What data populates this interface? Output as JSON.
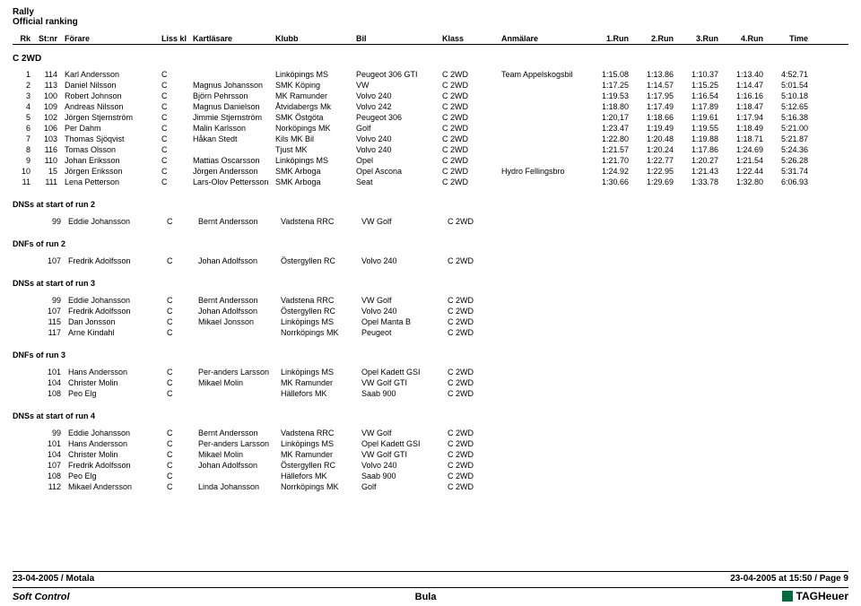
{
  "header": {
    "title": "Rally",
    "subtitle": "Official ranking",
    "columns": [
      "Rk",
      "St:nr",
      "Förare",
      "Liss kl",
      "Kartläsare",
      "Klubb",
      "Bil",
      "Klass",
      "Anmälare",
      "1.Run",
      "2.Run",
      "3.Run",
      "4.Run",
      "Time"
    ]
  },
  "class_label": "C 2WD",
  "results": [
    {
      "rk": "1",
      "st": "114",
      "driver": "Karl Andersson",
      "cls": "C",
      "co": "",
      "club": "Linköpings MS",
      "car": "Peugeot 306 GTI",
      "klass": "C 2WD",
      "entrant": "Team Appelskogsbil",
      "r1": "1:15.08",
      "r2": "1:13.86",
      "r3": "1:10.37",
      "r4": "1:13.40",
      "time": "4:52.71"
    },
    {
      "rk": "2",
      "st": "113",
      "driver": "Daniel Nilsson",
      "cls": "C",
      "co": "Magnus Johansson",
      "club": "SMK Köping",
      "car": "VW",
      "klass": "C 2WD",
      "entrant": "",
      "r1": "1:17.25",
      "r2": "1:14.57",
      "r3": "1:15.25",
      "r4": "1:14.47",
      "time": "5:01.54"
    },
    {
      "rk": "3",
      "st": "100",
      "driver": "Robert Johnson",
      "cls": "C",
      "co": "Björn Pehrsson",
      "club": "MK Ramunder",
      "car": "Volvo 240",
      "klass": "C 2WD",
      "entrant": "",
      "r1": "1:19.53",
      "r2": "1:17.95",
      "r3": "1:16.54",
      "r4": "1:16.16",
      "time": "5:10.18"
    },
    {
      "rk": "4",
      "st": "109",
      "driver": "Andreas Nilsson",
      "cls": "C",
      "co": "Magnus Danielson",
      "club": "Åtvidabergs Mk",
      "car": "Volvo 242",
      "klass": "C 2WD",
      "entrant": "",
      "r1": "1:18.80",
      "r2": "1:17.49",
      "r3": "1:17.89",
      "r4": "1:18.47",
      "time": "5:12.65"
    },
    {
      "rk": "5",
      "st": "102",
      "driver": "Jörgen Stjernström",
      "cls": "C",
      "co": "Jimmie Stjernström",
      "club": "SMK Östgöta",
      "car": "Peugeot 306",
      "klass": "C 2WD",
      "entrant": "",
      "r1": "1:20,17",
      "r2": "1:18.66",
      "r3": "1:19.61",
      "r4": "1:17.94",
      "time": "5:16.38"
    },
    {
      "rk": "6",
      "st": "106",
      "driver": "Per Dahm",
      "cls": "C",
      "co": "Malin Karlsson",
      "club": "Norköpings MK",
      "car": "Golf",
      "klass": "C 2WD",
      "entrant": "",
      "r1": "1:23.47",
      "r2": "1:19.49",
      "r3": "1:19.55",
      "r4": "1:18.49",
      "time": "5:21.00"
    },
    {
      "rk": "7",
      "st": "103",
      "driver": "Thomas Sjöqvist",
      "cls": "C",
      "co": "Håkan Stedt",
      "club": "Kils MK Bil",
      "car": "Volvo 240",
      "klass": "C 2WD",
      "entrant": "",
      "r1": "1:22.80",
      "r2": "1:20.48",
      "r3": "1:19.88",
      "r4": "1:18.71",
      "time": "5:21.87"
    },
    {
      "rk": "8",
      "st": "116",
      "driver": "Tomas Olsson",
      "cls": "C",
      "co": "",
      "club": "Tjust MK",
      "car": "Volvo 240",
      "klass": "C 2WD",
      "entrant": "",
      "r1": "1:21.57",
      "r2": "1:20.24",
      "r3": "1:17.86",
      "r4": "1:24.69",
      "time": "5:24.36"
    },
    {
      "rk": "9",
      "st": "110",
      "driver": "Johan Eriksson",
      "cls": "C",
      "co": "Mattias Oscarsson",
      "club": "Linköpings MS",
      "car": "Opel",
      "klass": "C 2WD",
      "entrant": "",
      "r1": "1:21.70",
      "r2": "1:22.77",
      "r3": "1:20.27",
      "r4": "1:21.54",
      "time": "5:26.28"
    },
    {
      "rk": "10",
      "st": "15",
      "driver": "Jörgen Eriksson",
      "cls": "C",
      "co": "Jörgen Andersson",
      "club": "SMK Arboga",
      "car": "Opel Ascona",
      "klass": "C 2WD",
      "entrant": "Hydro Fellingsbro",
      "r1": "1:24.92",
      "r2": "1:22.95",
      "r3": "1:21.43",
      "r4": "1:22.44",
      "time": "5:31.74"
    },
    {
      "rk": "11",
      "st": "111",
      "driver": "Lena Petterson",
      "cls": "C",
      "co": "Lars-Olov Pettersson",
      "club": "SMK Arboga",
      "car": "Seat",
      "klass": "C 2WD",
      "entrant": "",
      "r1": "1:30.66",
      "r2": "1:29.69",
      "r3": "1:33.78",
      "r4": "1:32.80",
      "time": "6:06.93"
    }
  ],
  "sections": [
    {
      "title": "DNSs at start of run 2",
      "rows": [
        {
          "st": "99",
          "driver": "Eddie Johansson",
          "cls": "C",
          "co": "Bernt Andersson",
          "club": "Vadstena RRC",
          "car": "VW Golf",
          "klass": "C 2WD"
        }
      ]
    },
    {
      "title": "DNFs of run 2",
      "rows": [
        {
          "st": "107",
          "driver": "Fredrik Adolfsson",
          "cls": "C",
          "co": "Johan Adolfsson",
          "club": "Östergyllen RC",
          "car": "Volvo 240",
          "klass": "C 2WD"
        }
      ]
    },
    {
      "title": "DNSs at start of run 3",
      "rows": [
        {
          "st": "99",
          "driver": "Eddie Johansson",
          "cls": "C",
          "co": "Bernt Andersson",
          "club": "Vadstena RRC",
          "car": "VW Golf",
          "klass": "C 2WD"
        },
        {
          "st": "107",
          "driver": "Fredrik Adolfsson",
          "cls": "C",
          "co": "Johan Adolfsson",
          "club": "Östergyllen RC",
          "car": "Volvo 240",
          "klass": "C 2WD"
        },
        {
          "st": "115",
          "driver": "Dan Jonsson",
          "cls": "C",
          "co": "Mikael Jonsson",
          "club": "Linköpings MS",
          "car": "Opel Manta B",
          "klass": "C 2WD"
        },
        {
          "st": "117",
          "driver": "Arne Kindahl",
          "cls": "C",
          "co": "",
          "club": "Norrköpings MK",
          "car": "Peugeot",
          "klass": "C 2WD"
        }
      ]
    },
    {
      "title": "DNFs of run 3",
      "rows": [
        {
          "st": "101",
          "driver": "Hans Andersson",
          "cls": "C",
          "co": "Per-anders Larsson",
          "club": "Linköpings MS",
          "car": "Opel Kadett GSI",
          "klass": "C 2WD"
        },
        {
          "st": "104",
          "driver": "Christer Molin",
          "cls": "C",
          "co": "Mikael Molin",
          "club": "MK Ramunder",
          "car": "VW Golf GTI",
          "klass": "C 2WD"
        },
        {
          "st": "108",
          "driver": "Peo Elg",
          "cls": "C",
          "co": "",
          "club": "Hällefors MK",
          "car": "Saab 900",
          "klass": "C 2WD"
        }
      ]
    },
    {
      "title": "DNSs at start of run 4",
      "rows": [
        {
          "st": "99",
          "driver": "Eddie Johansson",
          "cls": "C",
          "co": "Bernt Andersson",
          "club": "Vadstena RRC",
          "car": "VW Golf",
          "klass": "C 2WD"
        },
        {
          "st": "101",
          "driver": "Hans Andersson",
          "cls": "C",
          "co": "Per-anders Larsson",
          "club": "Linköpings MS",
          "car": "Opel Kadett GSI",
          "klass": "C 2WD"
        },
        {
          "st": "104",
          "driver": "Christer Molin",
          "cls": "C",
          "co": "Mikael Molin",
          "club": "MK Ramunder",
          "car": "VW Golf GTI",
          "klass": "C 2WD"
        },
        {
          "st": "107",
          "driver": "Fredrik Adolfsson",
          "cls": "C",
          "co": "Johan Adolfsson",
          "club": "Östergyllen RC",
          "car": "Volvo 240",
          "klass": "C 2WD"
        },
        {
          "st": "108",
          "driver": "Peo Elg",
          "cls": "C",
          "co": "",
          "club": "Hällefors MK",
          "car": "Saab 900",
          "klass": "C 2WD"
        },
        {
          "st": "112",
          "driver": "Mikael Andersson",
          "cls": "C",
          "co": "Linda Johansson",
          "club": "Norrköpings MK",
          "car": "Golf",
          "klass": "C 2WD"
        }
      ]
    }
  ],
  "footer": {
    "left1": "23-04-2005  /  Motala",
    "right1": "23-04-2005 at 15:50  /  Page 9",
    "left2": "Soft Control",
    "mid2": "Bula",
    "brand": "TAGHeuer"
  }
}
